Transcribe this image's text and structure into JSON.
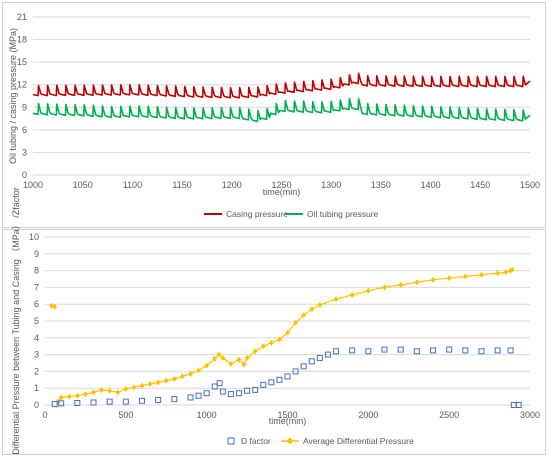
{
  "chart_data": [
    {
      "type": "line",
      "title": "",
      "xlabel": "time(min)",
      "ylabel": "Oil tubing / casing pressure (MPa)",
      "xlim": [
        1000,
        1500
      ],
      "ylim": [
        0,
        21
      ],
      "xticks": [
        "1000",
        "1050",
        "1100",
        "1150",
        "1200",
        "1250",
        "1300",
        "1350",
        "1400",
        "1450",
        "1500"
      ],
      "yticks": [
        "0",
        "3",
        "6",
        "9",
        "12",
        "15",
        "18",
        "21"
      ],
      "grid": "horizontal",
      "legend": "bottom",
      "series": [
        {
          "name": "Casing pressure",
          "color": "#c00000",
          "baseline": [
            [
              1000,
              10.7
            ],
            [
              1100,
              10.8
            ],
            [
              1160,
              10.5
            ],
            [
              1200,
              10.4
            ],
            [
              1220,
              10.5
            ],
            [
              1245,
              11.0
            ],
            [
              1300,
              11.6
            ],
            [
              1320,
              12.4
            ],
            [
              1330,
              12.0
            ],
            [
              1400,
              11.9
            ],
            [
              1500,
              11.9
            ]
          ],
          "spike": 1.2
        },
        {
          "name": "Oil tubing pressure",
          "color": "#00b050",
          "baseline": [
            [
              1000,
              8.2
            ],
            [
              1050,
              8.0
            ],
            [
              1075,
              7.8
            ],
            [
              1100,
              7.9
            ],
            [
              1150,
              7.6
            ],
            [
              1200,
              7.7
            ],
            [
              1225,
              7.2
            ],
            [
              1245,
              8.6
            ],
            [
              1290,
              8.4
            ],
            [
              1320,
              9.0
            ],
            [
              1330,
              8.2
            ],
            [
              1400,
              7.8
            ],
            [
              1450,
              7.5
            ],
            [
              1500,
              7.3
            ]
          ],
          "spike": 1.3
        }
      ]
    },
    {
      "type": "scatter",
      "title": "",
      "xlabel": "time(min)",
      "ylabel": "Differential Pressure between Tubing and Casing （MPa） /Zfactor",
      "xlim": [
        0,
        3000
      ],
      "ylim": [
        0,
        10
      ],
      "xticks": [
        "0",
        "500",
        "1000",
        "1500",
        "2000",
        "2500",
        "3000"
      ],
      "yticks": [
        "0",
        "1",
        "2",
        "3",
        "4",
        "5",
        "6",
        "7",
        "8",
        "9",
        "10"
      ],
      "grid": "horizontal",
      "legend": "bottom",
      "series": [
        {
          "name": "D factor",
          "color": "#4472c4",
          "marker": "square",
          "points": [
            [
              60,
              0.05
            ],
            [
              100,
              0.1
            ],
            [
              200,
              0.12
            ],
            [
              300,
              0.15
            ],
            [
              400,
              0.2
            ],
            [
              500,
              0.2
            ],
            [
              600,
              0.25
            ],
            [
              700,
              0.3
            ],
            [
              800,
              0.35
            ],
            [
              900,
              0.45
            ],
            [
              950,
              0.55
            ],
            [
              1000,
              0.7
            ],
            [
              1050,
              1.1
            ],
            [
              1080,
              1.3
            ],
            [
              1100,
              0.8
            ],
            [
              1150,
              0.65
            ],
            [
              1200,
              0.7
            ],
            [
              1250,
              0.85
            ],
            [
              1300,
              0.9
            ],
            [
              1350,
              1.2
            ],
            [
              1400,
              1.35
            ],
            [
              1450,
              1.5
            ],
            [
              1500,
              1.7
            ],
            [
              1550,
              2.0
            ],
            [
              1600,
              2.3
            ],
            [
              1650,
              2.6
            ],
            [
              1700,
              2.8
            ],
            [
              1750,
              3.0
            ],
            [
              1800,
              3.2
            ],
            [
              1900,
              3.25
            ],
            [
              2000,
              3.2
            ],
            [
              2100,
              3.3
            ],
            [
              2200,
              3.3
            ],
            [
              2300,
              3.2
            ],
            [
              2400,
              3.25
            ],
            [
              2500,
              3.3
            ],
            [
              2600,
              3.25
            ],
            [
              2700,
              3.2
            ],
            [
              2800,
              3.25
            ],
            [
              2880,
              3.25
            ],
            [
              2900,
              0.0
            ],
            [
              2930,
              0.0
            ]
          ]
        },
        {
          "name": "Average Differential Pressure",
          "color": "#ffc000",
          "marker": "diamond",
          "points": [
            [
              40,
              5.9
            ],
            [
              60,
              5.85
            ],
            [
              80,
              0.2
            ],
            [
              100,
              0.45
            ],
            [
              150,
              0.5
            ],
            [
              200,
              0.55
            ],
            [
              250,
              0.65
            ],
            [
              300,
              0.75
            ],
            [
              350,
              0.9
            ],
            [
              400,
              0.85
            ],
            [
              450,
              0.75
            ],
            [
              500,
              0.95
            ],
            [
              550,
              1.05
            ],
            [
              600,
              1.15
            ],
            [
              650,
              1.25
            ],
            [
              700,
              1.35
            ],
            [
              750,
              1.45
            ],
            [
              800,
              1.55
            ],
            [
              850,
              1.7
            ],
            [
              900,
              1.85
            ],
            [
              950,
              2.05
            ],
            [
              1000,
              2.35
            ],
            [
              1050,
              2.75
            ],
            [
              1075,
              3.0
            ],
            [
              1100,
              2.8
            ],
            [
              1150,
              2.45
            ],
            [
              1200,
              2.7
            ],
            [
              1230,
              2.4
            ],
            [
              1250,
              2.8
            ],
            [
              1300,
              3.2
            ],
            [
              1350,
              3.5
            ],
            [
              1400,
              3.7
            ],
            [
              1450,
              3.9
            ],
            [
              1500,
              4.3
            ],
            [
              1550,
              4.9
            ],
            [
              1600,
              5.35
            ],
            [
              1650,
              5.7
            ],
            [
              1700,
              5.95
            ],
            [
              1800,
              6.3
            ],
            [
              1900,
              6.55
            ],
            [
              2000,
              6.8
            ],
            [
              2100,
              7.0
            ],
            [
              2200,
              7.15
            ],
            [
              2300,
              7.3
            ],
            [
              2400,
              7.45
            ],
            [
              2500,
              7.55
            ],
            [
              2600,
              7.65
            ],
            [
              2700,
              7.75
            ],
            [
              2800,
              7.85
            ],
            [
              2850,
              7.9
            ],
            [
              2880,
              8.0
            ],
            [
              2890,
              8.05
            ]
          ]
        }
      ]
    }
  ]
}
